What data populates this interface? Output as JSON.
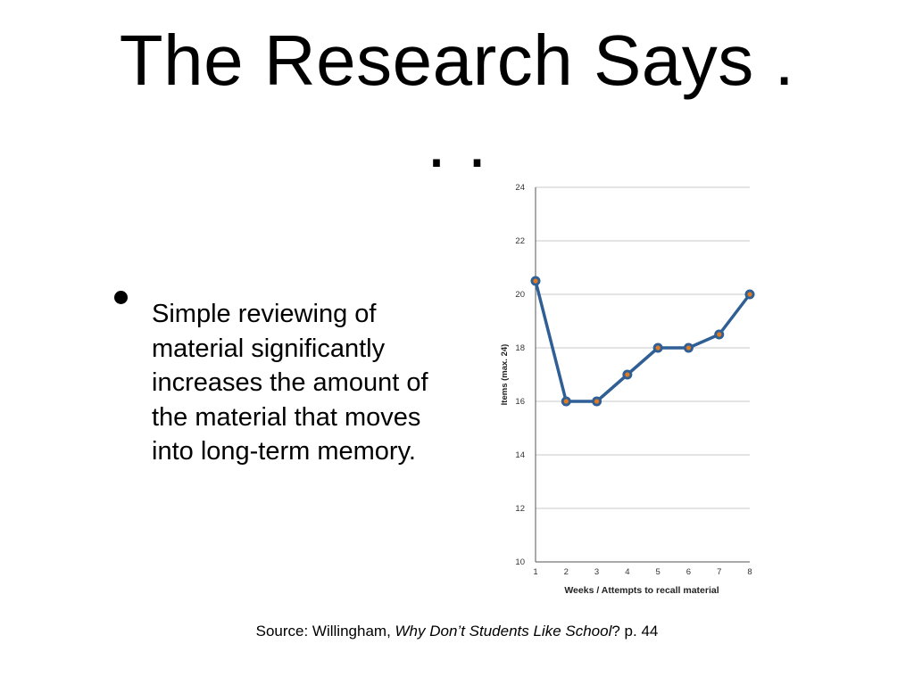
{
  "slide": {
    "title_line1": "The Research Says .",
    "title_line2": ". .",
    "bullet": "Simple reviewing of material significantly increases the amount of the material that moves into long-term memory.",
    "source_prefix": "Source:  Willingham, ",
    "source_title": "Why Don’t Students Like School",
    "source_suffix": "? p. 44"
  },
  "chart_data": {
    "type": "line",
    "x": [
      1,
      2,
      3,
      4,
      5,
      6,
      7,
      8
    ],
    "series": [
      {
        "values": [
          20.5,
          16,
          16,
          17,
          18,
          18,
          18.5,
          20
        ]
      }
    ],
    "xlabel": "Weeks / Attempts to recall material",
    "ylabel": "Items (max. 24)",
    "xlim": [
      1,
      8
    ],
    "ylim": [
      10,
      24
    ],
    "yticks": [
      10,
      12,
      14,
      16,
      18,
      20,
      22,
      24
    ],
    "xticks": [
      1,
      2,
      3,
      4,
      5,
      6,
      7,
      8
    ],
    "grid": true,
    "line_color": "#2f5f95",
    "marker_color": "#e07b22"
  }
}
